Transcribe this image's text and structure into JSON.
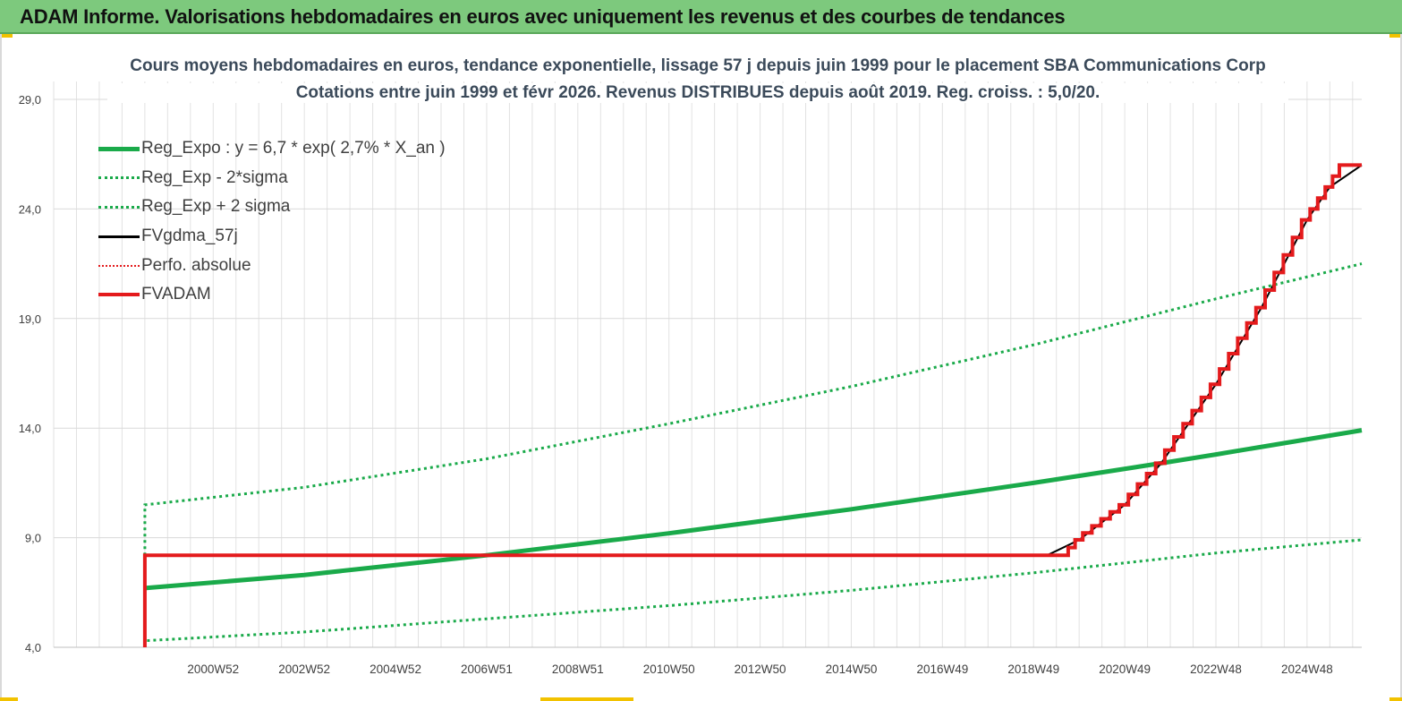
{
  "header": {
    "title": "ADAM Informe. Valorisations hebdomadaires en euros avec uniquement les revenus et des courbes de tendances"
  },
  "chart_data": {
    "type": "line",
    "title": "Cours moyens hebdomadaires en euros, tendance exponentielle, lissage 57 j depuis juin 1999 pour le placement SBA Communications Corp",
    "subtitle": "Cotations entre juin 1999 et févr 2026. Revenus DISTRIBUES depuis août 2019. Reg. croiss. : 5,0/20.",
    "xlabel": "",
    "ylabel": "",
    "ylim": [
      4.0,
      29.0
    ],
    "xlim": [
      1997.5,
      2026.2
    ],
    "y_ticks": [
      4.0,
      9.0,
      14.0,
      19.0,
      24.0,
      29.0
    ],
    "y_tick_labels": [
      "4,0",
      "9,0",
      "14,0",
      "19,0",
      "24,0",
      "29,0"
    ],
    "x_ticks": [
      {
        "label": "2000W52",
        "x": 2001.0
      },
      {
        "label": "2002W52",
        "x": 2003.0
      },
      {
        "label": "2004W52",
        "x": 2005.0
      },
      {
        "label": "2006W51",
        "x": 2007.0
      },
      {
        "label": "2008W51",
        "x": 2009.0
      },
      {
        "label": "2010W50",
        "x": 2011.0
      },
      {
        "label": "2012W50",
        "x": 2013.0
      },
      {
        "label": "2014W50",
        "x": 2015.0
      },
      {
        "label": "2016W49",
        "x": 2017.0
      },
      {
        "label": "2018W49",
        "x": 2019.0
      },
      {
        "label": "2020W49",
        "x": 2021.0
      },
      {
        "label": "2022W48",
        "x": 2023.0
      },
      {
        "label": "2024W48",
        "x": 2025.0
      }
    ],
    "grid": true,
    "legend_position": "top-left",
    "series": [
      {
        "name": "Reg_Expo : y = 6,7 * exp( 2,7% *  X_an )",
        "color": "#1aaa4a",
        "style": "solid-thick",
        "x": [
          1999.5,
          2003,
          2007,
          2011,
          2015,
          2019,
          2021.8,
          2023,
          2026.2
        ],
        "y": [
          6.7,
          7.3,
          8.2,
          9.2,
          10.3,
          11.5,
          12.4,
          12.8,
          13.9
        ]
      },
      {
        "name": "Reg_Exp - 2*sigma",
        "color": "#1aaa4a",
        "style": "dotted",
        "x": [
          1999.5,
          1999.5,
          2003,
          2007,
          2011,
          2015,
          2019,
          2023,
          2026.2
        ],
        "y": [
          8.2,
          4.3,
          4.7,
          5.3,
          5.9,
          6.6,
          7.4,
          8.3,
          8.9
        ]
      },
      {
        "name": "Reg_Exp + 2 sigma",
        "color": "#1aaa4a",
        "style": "dotted",
        "x": [
          1999.5,
          1999.5,
          2003,
          2007,
          2011,
          2015,
          2019,
          2023,
          2026.2
        ],
        "y": [
          8.2,
          10.5,
          11.3,
          12.6,
          14.2,
          15.9,
          17.8,
          19.9,
          21.5
        ]
      },
      {
        "name": "FVgdma_57j",
        "color": "#000000",
        "style": "solid",
        "x": [
          2019.3,
          2020.0,
          2021.0,
          2021.8,
          2022.0,
          2023.0,
          2024.0,
          2025.0,
          2025.5,
          2026.2
        ],
        "y": [
          8.2,
          8.9,
          10.5,
          12.4,
          13.0,
          16.0,
          19.5,
          23.5,
          25.0,
          26.0
        ]
      },
      {
        "name": "Perfo. absolue",
        "color": "#e41a1c",
        "style": "dotted",
        "x": [],
        "y": []
      },
      {
        "name": "FVADAM",
        "color": "#e41a1c",
        "style": "solid-thick",
        "x": [
          1999.5,
          1999.5,
          2019.7,
          2020.0,
          2021.0,
          2021.8,
          2022.0,
          2023.0,
          2024.0,
          2025.0,
          2025.5,
          2025.8,
          2026.2
        ],
        "y": [
          4.0,
          8.2,
          8.2,
          8.9,
          10.5,
          12.4,
          13.0,
          16.0,
          19.5,
          23.5,
          25.0,
          26.0,
          26.0
        ]
      }
    ]
  }
}
